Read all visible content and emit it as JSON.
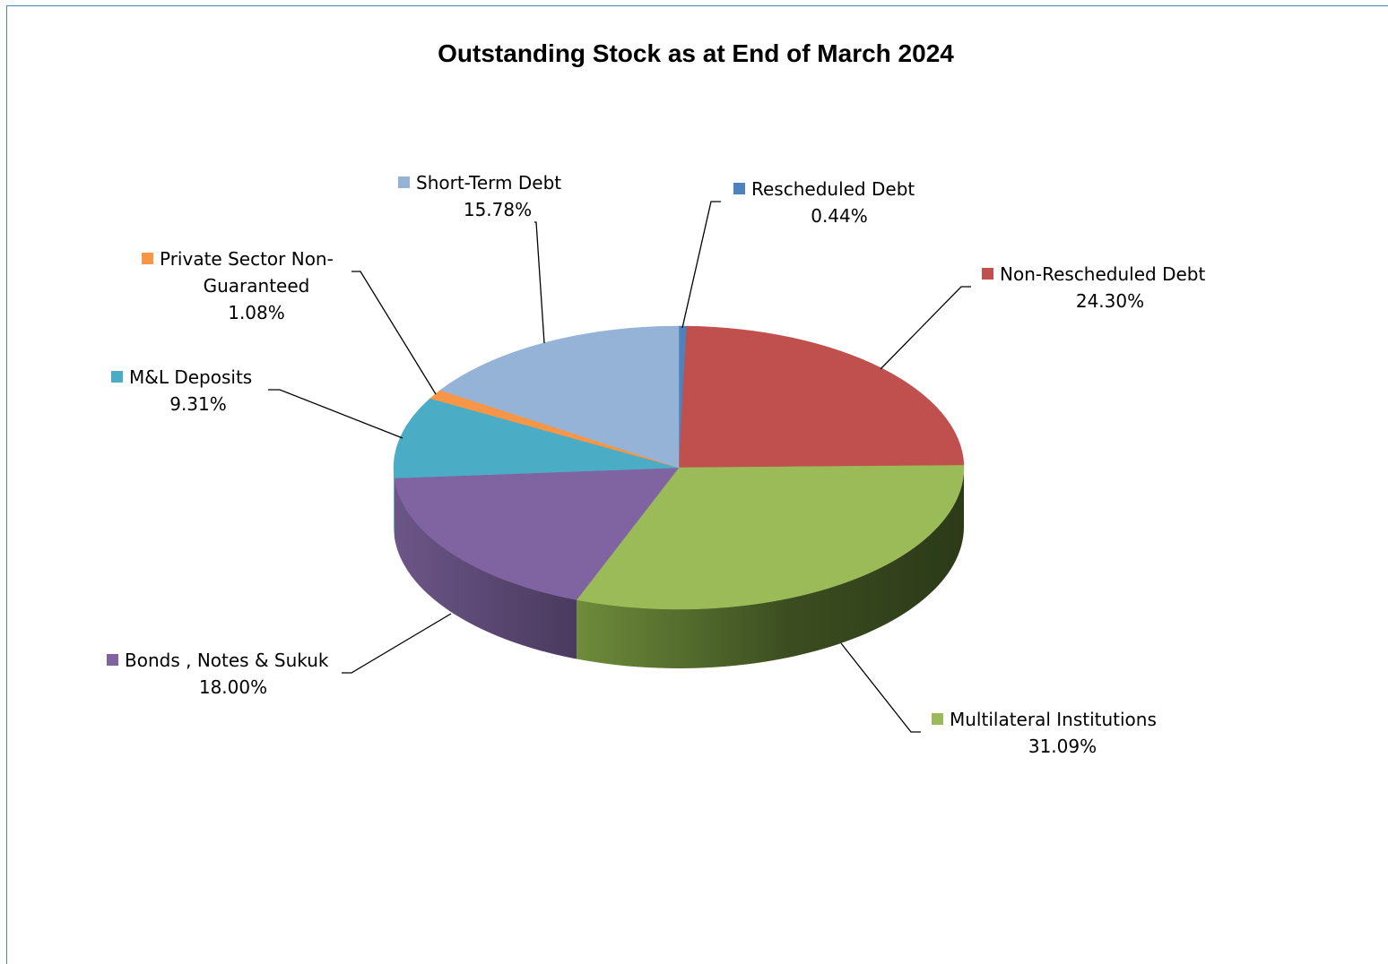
{
  "chart_data": {
    "type": "pie",
    "title": "Outstanding Stock as at End of March 2024",
    "three_d": true,
    "series": [
      {
        "name": "Rescheduled Debt",
        "value": 0.44,
        "value_label": "0.44%",
        "color": "#4f81bd",
        "label_lines": [
          "Rescheduled Debt"
        ]
      },
      {
        "name": "Non-Rescheduled Debt",
        "value": 24.3,
        "value_label": "24.30%",
        "color": "#c0504d",
        "label_lines": [
          "Non-Rescheduled Debt"
        ]
      },
      {
        "name": "Multilateral Institutions",
        "value": 31.09,
        "value_label": "31.09%",
        "color": "#9bbb59",
        "label_lines": [
          "Multilateral Institutions"
        ]
      },
      {
        "name": "Bonds , Notes & Sukuk",
        "value": 18.0,
        "value_label": "18.00%",
        "color": "#8064a2",
        "label_lines": [
          "Bonds , Notes & Sukuk"
        ]
      },
      {
        "name": "M&L Deposits",
        "value": 9.31,
        "value_label": "9.31%",
        "color": "#4bacc6",
        "label_lines": [
          "M&L Deposits"
        ]
      },
      {
        "name": "Private Sector Non-Guaranteed",
        "value": 1.08,
        "value_label": "1.08%",
        "color": "#f79646",
        "label_lines": [
          "Private Sector Non-",
          "Guaranteed"
        ]
      },
      {
        "name": "Short-Term Debt",
        "value": 15.78,
        "value_label": "15.78%",
        "color": "#95b3d7",
        "label_lines": [
          "Short-Term Debt"
        ]
      }
    ]
  }
}
